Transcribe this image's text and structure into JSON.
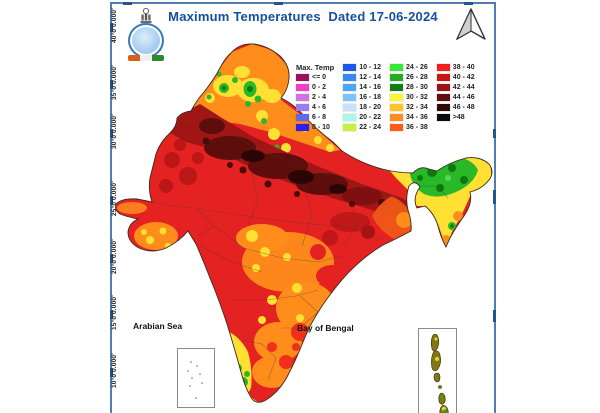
{
  "header": {
    "title": "Maximum Temperatures  Dated 17-06-2024"
  },
  "legend": {
    "columns": [
      {
        "items": [
          {
            "label": "Max. Temp"
          },
          {
            "label": "<= 0",
            "color": "#9C0F63"
          },
          {
            "label": "0 - 2",
            "color": "#EF3FC8"
          },
          {
            "label": "2 - 4",
            "color": "#CE73E6"
          },
          {
            "label": "4 - 6",
            "color": "#9C7BF0"
          },
          {
            "label": "6 - 8",
            "color": "#6168E6"
          },
          {
            "label": "8 - 10",
            "color": "#2F1FEE"
          }
        ]
      },
      {
        "items": [
          {
            "label": "10 - 12",
            "color": "#1C57EE"
          },
          {
            "label": "12 - 14",
            "color": "#3689F2"
          },
          {
            "label": "14 - 16",
            "color": "#49A7F5"
          },
          {
            "label": "16 - 18",
            "color": "#7CC3F7"
          },
          {
            "label": "18 - 20",
            "color": "#C5E3FA"
          },
          {
            "label": "20 - 22",
            "color": "#ABF7EA"
          },
          {
            "label": "22 - 24",
            "color": "#C6F23F"
          }
        ]
      },
      {
        "items": [
          {
            "label": "24 - 26",
            "color": "#37E837"
          },
          {
            "label": "26 - 28",
            "color": "#22AD22"
          },
          {
            "label": "28 - 30",
            "color": "#127D12"
          },
          {
            "label": "30 - 32",
            "color": "#FFF433"
          },
          {
            "label": "32 - 34",
            "color": "#FFC228"
          },
          {
            "label": "34 - 36",
            "color": "#FF8D1C"
          },
          {
            "label": "36 - 38",
            "color": "#FF5B15"
          }
        ]
      },
      {
        "items": [
          {
            "label": "38 - 40",
            "color": "#F51E1E"
          },
          {
            "label": "40 - 42",
            "color": "#C91515"
          },
          {
            "label": "42 - 44",
            "color": "#9B1212"
          },
          {
            "label": "44 - 46",
            "color": "#5F0F0F"
          },
          {
            "label": "46 - 48",
            "color": "#300909"
          },
          {
            "label": ">48",
            "color": "#0B0B0B"
          }
        ]
      }
    ]
  },
  "axis": {
    "latitude_labels": [
      "40°0'0.000'",
      "35°0'0.000'",
      "30°0'0.000'",
      "25°0'0.000'",
      "20°0'0.000'",
      "15°0'0.000'",
      "10°0'0.000'"
    ]
  },
  "map": {
    "sea_label_west": "Arabian Sea",
    "sea_label_east": "Bay of Bengal"
  },
  "colors": {
    "frame_border": "#4E7FB0",
    "title_text": "#164F9E"
  }
}
